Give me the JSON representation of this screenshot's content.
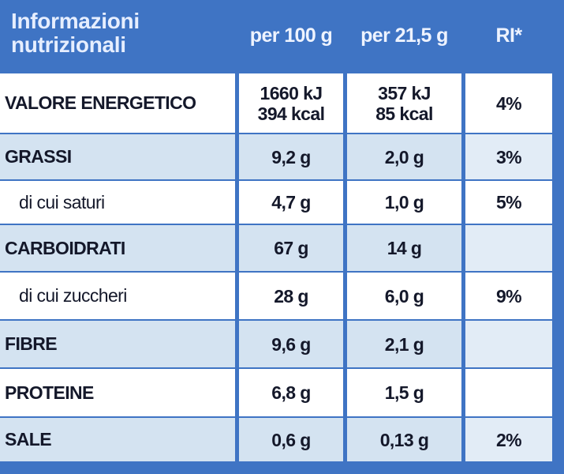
{
  "header": {
    "title": "Informazioni nutrizionali",
    "columns": [
      "per 100 g",
      "per 21,5 g",
      "RI*"
    ]
  },
  "rows": [
    {
      "label": "VALORE ENERGETICO",
      "per_100g": [
        "1660 kJ",
        "394 kcal"
      ],
      "per_21_5g": [
        "357 kJ",
        "85 kcal"
      ],
      "ri": "4%"
    },
    {
      "label": "GRASSI",
      "per_100g": "9,2 g",
      "per_21_5g": "2,0 g",
      "ri": "3%"
    },
    {
      "label": "di cui saturi",
      "indent": true,
      "per_100g": "4,7 g",
      "per_21_5g": "1,0 g",
      "ri": "5%"
    },
    {
      "label": "CARBOIDRATI",
      "per_100g": "67 g",
      "per_21_5g": "14 g"
    },
    {
      "label": "di cui zuccheri",
      "indent": true,
      "per_100g": "28 g",
      "per_21_5g": "6,0 g",
      "ri": "9%"
    },
    {
      "label": "FIBRE",
      "per_100g": "9,6 g",
      "per_21_5g": "2,1 g"
    },
    {
      "label": "PROTEINE",
      "per_100g": "6,8 g",
      "per_21_5g": "1,5 g"
    },
    {
      "label": "SALE",
      "per_100g": "0,6 g",
      "per_21_5g": "0,13 g",
      "ri": "2%"
    }
  ]
}
